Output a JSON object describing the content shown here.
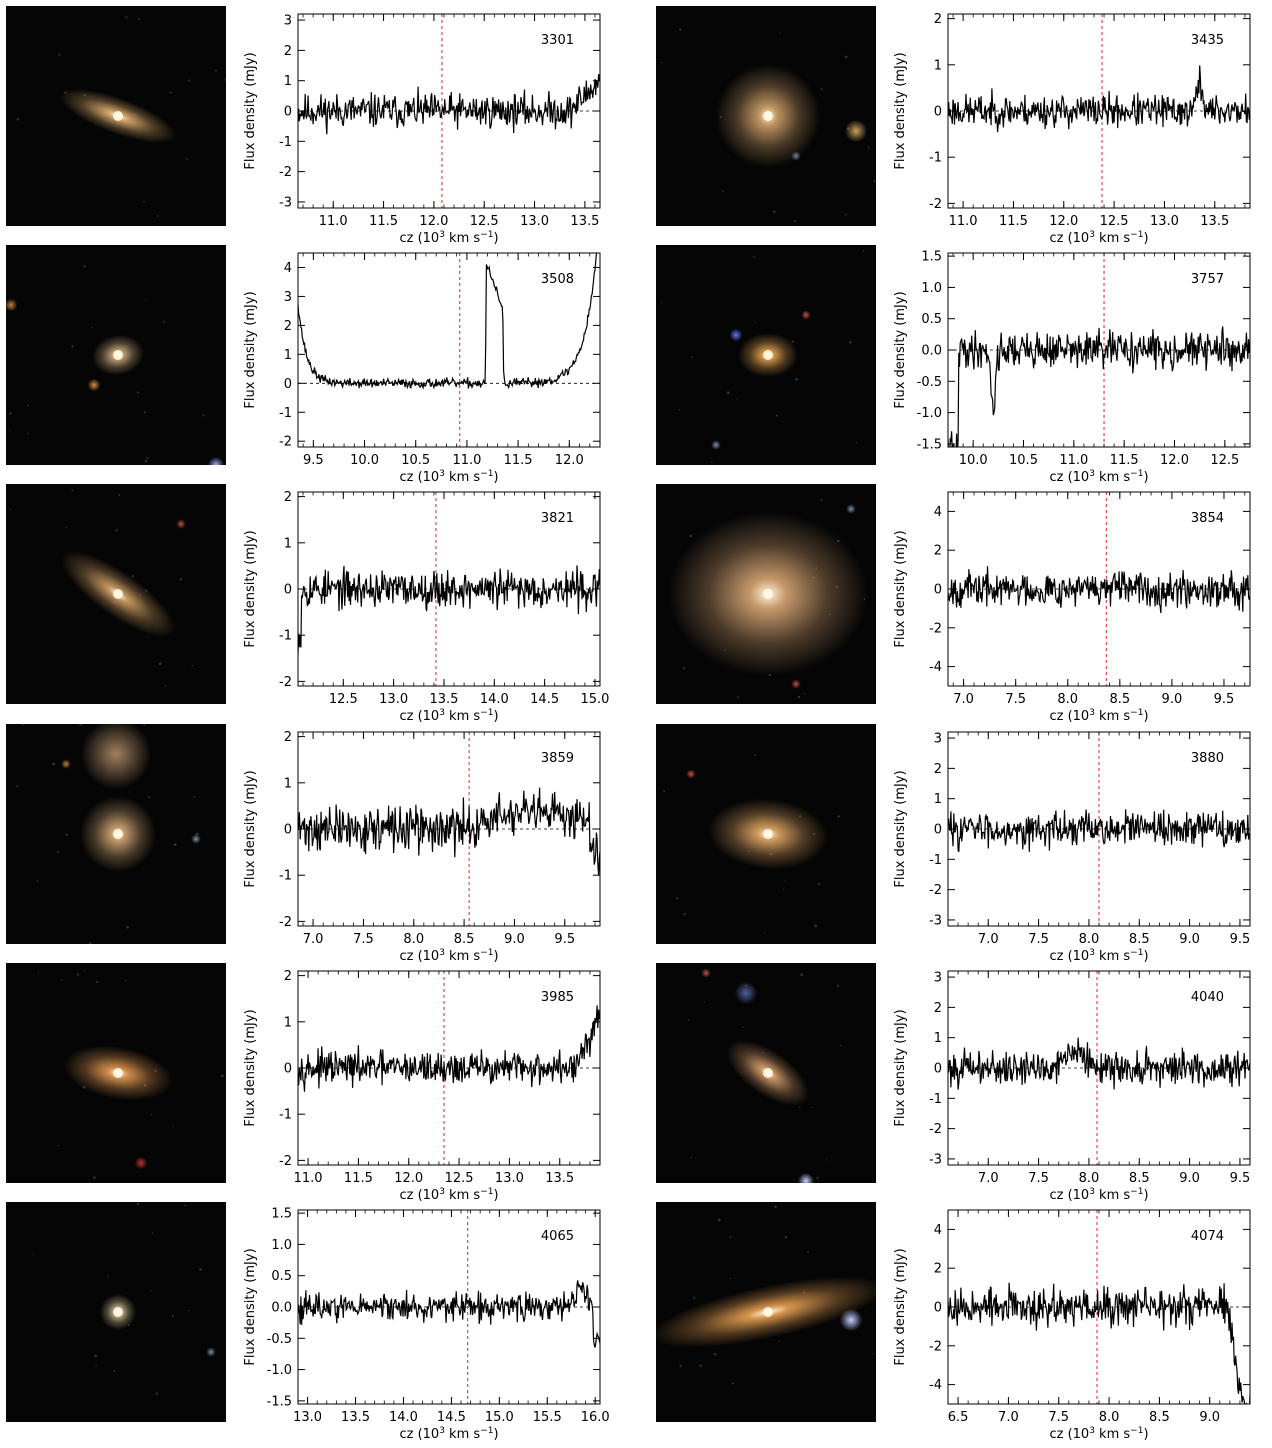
{
  "colors": {
    "spectrum": "#000000",
    "vline": "#e0221e",
    "zero": "#000000",
    "frame": "#000000"
  },
  "axis_labels": {
    "ylabel": "Flux density (mJy)",
    "xlabel_prefix": "cz (10",
    "xlabel_sup": "3",
    "xlabel_mid": " km s",
    "xlabel_sup2": "−1",
    "xlabel_suffix": ")"
  },
  "chart_data": [
    {
      "type": "line",
      "id": "3301",
      "xlim": [
        10.65,
        13.65
      ],
      "ylim": [
        -3.2,
        3.2
      ],
      "xticks": [
        "11.0",
        "11.5",
        "12.0",
        "12.5",
        "13.0",
        "13.5"
      ],
      "xtick_vals": [
        11.0,
        11.5,
        12.0,
        12.5,
        13.0,
        13.5
      ],
      "yticks": [
        "-3",
        "-2",
        "-1",
        "0",
        "1",
        "2",
        "3"
      ],
      "ytick_vals": [
        -3,
        -2,
        -1,
        0,
        1,
        2,
        3
      ],
      "vline": 12.08,
      "noise": 0.35,
      "seed": 11,
      "features": [
        {
          "type": "ramp",
          "x0": 13.35,
          "x1": 13.65,
          "y0": 0,
          "y1": 1.0
        }
      ],
      "galaxy": {
        "type": "spiral",
        "angle": -70,
        "rx": 18,
        "ry": 62,
        "color": "#d6a86a",
        "bg_stars": []
      }
    },
    {
      "type": "line",
      "id": "3435",
      "xlim": [
        10.85,
        13.85
      ],
      "ylim": [
        -2.1,
        2.1
      ],
      "xticks": [
        "11.0",
        "11.5",
        "12.0",
        "12.5",
        "13.0",
        "13.5"
      ],
      "xtick_vals": [
        11.0,
        11.5,
        12.0,
        12.5,
        13.0,
        13.5
      ],
      "yticks": [
        "-2",
        "-1",
        "0",
        "1",
        "2"
      ],
      "ytick_vals": [
        -2,
        -1,
        0,
        1,
        2
      ],
      "vline": 12.38,
      "noise": 0.22,
      "seed": 23,
      "features": [
        {
          "type": "gauss",
          "x": 13.35,
          "w": 0.03,
          "a": 0.6
        }
      ],
      "galaxy": {
        "type": "round",
        "angle": 0,
        "rx": 52,
        "ry": 52,
        "color": "#c79a66",
        "bg_stars": [
          [
            200,
            125,
            7,
            "#c8a060"
          ],
          [
            140,
            150,
            3,
            "#7080a0"
          ]
        ]
      }
    },
    {
      "type": "line",
      "id": "3508",
      "xlim": [
        9.35,
        12.3
      ],
      "ylim": [
        -2.2,
        4.5
      ],
      "xticks": [
        "9.5",
        "10.0",
        "10.5",
        "11.0",
        "11.5",
        "12.0"
      ],
      "xtick_vals": [
        9.5,
        10.0,
        10.5,
        11.0,
        11.5,
        12.0
      ],
      "yticks": [
        "-2",
        "-1",
        "0",
        "1",
        "2",
        "3",
        "4"
      ],
      "ytick_vals": [
        -2,
        -1,
        0,
        1,
        2,
        3,
        4
      ],
      "vline": 10.93,
      "noise": 0.1,
      "seed": 37,
      "features": [
        {
          "type": "expl",
          "x": 9.35,
          "a": 2.8,
          "s": 0.08
        },
        {
          "type": "horn",
          "x0": 11.18,
          "x1": 11.36,
          "a1": 4.2,
          "a2": 2.5
        },
        {
          "type": "expr",
          "x": 12.3,
          "a": 6.0,
          "s": 0.12
        }
      ],
      "galaxy": {
        "type": "small",
        "angle": -10,
        "rx": 26,
        "ry": 20,
        "color": "#d0b080",
        "bg_stars": [
          [
            88,
            140,
            4,
            "#d09040"
          ],
          [
            210,
            220,
            5,
            "#a0b0ff"
          ],
          [
            5,
            60,
            4,
            "#c08040"
          ]
        ]
      }
    },
    {
      "type": "line",
      "id": "3757",
      "xlim": [
        9.75,
        12.75
      ],
      "ylim": [
        -1.55,
        1.55
      ],
      "xticks": [
        "10.0",
        "10.5",
        "11.0",
        "11.5",
        "12.0",
        "12.5"
      ],
      "xtick_vals": [
        10.0,
        10.5,
        11.0,
        11.5,
        12.0,
        12.5
      ],
      "yticks": [
        "-1.5",
        "-1.0",
        "-0.5",
        "0.0",
        "0.5",
        "1.0",
        "1.5"
      ],
      "ytick_vals": [
        -1.5,
        -1.0,
        -0.5,
        0.0,
        0.5,
        1.0,
        1.5
      ],
      "vline": 11.3,
      "noise": 0.18,
      "seed": 41,
      "features": [
        {
          "type": "dip",
          "x0": 9.75,
          "x1": 9.85,
          "a": -1.6
        },
        {
          "type": "gauss",
          "x": 10.2,
          "w": 0.02,
          "a": -1.0
        }
      ],
      "galaxy": {
        "type": "small",
        "angle": 0,
        "rx": 30,
        "ry": 22,
        "color": "#e0a050",
        "bg_stars": [
          [
            80,
            90,
            4,
            "#6070ff"
          ],
          [
            150,
            70,
            3,
            "#c05040"
          ],
          [
            60,
            200,
            3,
            "#8090a0"
          ]
        ]
      }
    },
    {
      "type": "line",
      "id": "3821",
      "xlim": [
        12.05,
        15.05
      ],
      "ylim": [
        -2.1,
        2.1
      ],
      "xticks": [
        "12.5",
        "13.0",
        "13.5",
        "14.0",
        "14.5",
        "15.0"
      ],
      "xtick_vals": [
        12.5,
        13.0,
        13.5,
        14.0,
        14.5,
        15.0
      ],
      "yticks": [
        "-2",
        "-1",
        "0",
        "1",
        "2"
      ],
      "ytick_vals": [
        -2,
        -1,
        0,
        1,
        2
      ],
      "vline": 13.42,
      "noise": 0.25,
      "seed": 53,
      "features": [
        {
          "type": "dip",
          "x0": 12.05,
          "x1": 12.08,
          "a": -1.0
        }
      ],
      "galaxy": {
        "type": "spiral",
        "angle": -55,
        "rx": 22,
        "ry": 68,
        "color": "#c89a60",
        "bg_stars": [
          [
            175,
            40,
            3,
            "#c05040"
          ]
        ]
      }
    },
    {
      "type": "line",
      "id": "3854",
      "xlim": [
        6.85,
        9.75
      ],
      "ylim": [
        -5,
        5
      ],
      "xticks": [
        "7.0",
        "7.5",
        "8.0",
        "8.5",
        "9.0",
        "9.5"
      ],
      "xtick_vals": [
        7.0,
        7.5,
        8.0,
        8.5,
        9.0,
        9.5
      ],
      "yticks": [
        "-4",
        "-2",
        "0",
        "2",
        "4"
      ],
      "ytick_vals": [
        -4,
        -2,
        0,
        2,
        4
      ],
      "vline": 8.37,
      "noise": 0.55,
      "seed": 67,
      "features": [],
      "galaxy": {
        "type": "big",
        "angle": 0,
        "rx": 100,
        "ry": 82,
        "color": "#d0a070",
        "bg_stars": [
          [
            195,
            25,
            3,
            "#8090a0"
          ],
          [
            140,
            200,
            3,
            "#c05040"
          ]
        ]
      }
    },
    {
      "type": "line",
      "id": "3859",
      "xlim": [
        6.85,
        9.85
      ],
      "ylim": [
        -2.1,
        2.1
      ],
      "xticks": [
        "7.0",
        "7.5",
        "8.0",
        "8.5",
        "9.0",
        "9.5"
      ],
      "xtick_vals": [
        7.0,
        7.5,
        8.0,
        8.5,
        9.0,
        9.5
      ],
      "yticks": [
        "-2",
        "-1",
        "0",
        "1",
        "2"
      ],
      "ytick_vals": [
        -2,
        -1,
        0,
        1,
        2
      ],
      "vline": 8.55,
      "noise": 0.3,
      "seed": 71,
      "features": [
        {
          "type": "ramp",
          "x0": 8.5,
          "x1": 8.9,
          "y0": 0,
          "y1": 0.3
        },
        {
          "type": "dip",
          "x0": 9.75,
          "x1": 9.85,
          "a": -0.7
        }
      ],
      "galaxy": {
        "type": "pair",
        "angle": 0,
        "rx": 38,
        "ry": 38,
        "color": "#c8a070",
        "bg_stars": [
          [
            110,
            30,
            22,
            "#a08060"
          ],
          [
            60,
            40,
            3,
            "#c08040"
          ],
          [
            190,
            115,
            3,
            "#8090a0"
          ]
        ]
      }
    },
    {
      "type": "line",
      "id": "3880",
      "xlim": [
        6.6,
        9.6
      ],
      "ylim": [
        -3.2,
        3.2
      ],
      "xticks": [
        "7.0",
        "7.5",
        "8.0",
        "8.5",
        "9.0",
        "9.5"
      ],
      "xtick_vals": [
        7.0,
        7.5,
        8.0,
        8.5,
        9.0,
        9.5
      ],
      "yticks": [
        "-3",
        "-2",
        "-1",
        "0",
        "1",
        "2",
        "3"
      ],
      "ytick_vals": [
        -3,
        -2,
        -1,
        0,
        1,
        2,
        3
      ],
      "vline": 8.1,
      "noise": 0.35,
      "seed": 83,
      "features": [],
      "galaxy": {
        "type": "elliptical",
        "angle": -85,
        "rx": 35,
        "ry": 60,
        "color": "#d8a060",
        "bg_stars": [
          [
            35,
            50,
            3,
            "#c05040"
          ]
        ]
      }
    },
    {
      "type": "line",
      "id": "3985",
      "xlim": [
        10.9,
        13.9
      ],
      "ylim": [
        -2.1,
        2.1
      ],
      "xticks": [
        "11.0",
        "11.5",
        "12.0",
        "12.5",
        "13.0",
        "13.5"
      ],
      "xtick_vals": [
        11.0,
        11.5,
        12.0,
        12.5,
        13.0,
        13.5
      ],
      "yticks": [
        "-2",
        "-1",
        "0",
        "1",
        "2"
      ],
      "ytick_vals": [
        -2,
        -1,
        0,
        1,
        2
      ],
      "vline": 12.35,
      "noise": 0.22,
      "seed": 97,
      "features": [
        {
          "type": "ramp",
          "x0": 13.65,
          "x1": 13.9,
          "y0": 0,
          "y1": 1.1
        }
      ],
      "galaxy": {
        "type": "elliptical",
        "angle": -80,
        "rx": 26,
        "ry": 55,
        "color": "#dc9450",
        "bg_stars": [
          [
            135,
            200,
            4,
            "#c03030"
          ]
        ]
      }
    },
    {
      "type": "line",
      "id": "4040",
      "xlim": [
        6.6,
        9.6
      ],
      "ylim": [
        -3.2,
        3.2
      ],
      "xticks": [
        "7.0",
        "7.5",
        "8.0",
        "8.5",
        "9.0",
        "9.5"
      ],
      "xtick_vals": [
        7.0,
        7.5,
        8.0,
        8.5,
        9.0,
        9.5
      ],
      "yticks": [
        "-3",
        "-2",
        "-1",
        "0",
        "1",
        "2",
        "3"
      ],
      "ytick_vals": [
        -3,
        -2,
        -1,
        0,
        1,
        2,
        3
      ],
      "vline": 8.08,
      "noise": 0.35,
      "seed": 101,
      "features": [
        {
          "type": "gauss",
          "x": 7.85,
          "w": 0.08,
          "a": 0.7
        }
      ],
      "galaxy": {
        "type": "spiral",
        "angle": -55,
        "rx": 22,
        "ry": 48,
        "color": "#d09868",
        "bg_stars": [
          [
            90,
            30,
            7,
            "#5060a0"
          ],
          [
            150,
            218,
            5,
            "#c0d0ff"
          ],
          [
            50,
            10,
            3,
            "#c05040"
          ]
        ]
      }
    },
    {
      "type": "line",
      "id": "4065",
      "xlim": [
        12.9,
        16.05
      ],
      "ylim": [
        -1.55,
        1.55
      ],
      "xticks": [
        "13.0",
        "13.5",
        "14.0",
        "14.5",
        "15.0",
        "15.5",
        "16.0"
      ],
      "xtick_vals": [
        13.0,
        13.5,
        14.0,
        14.5,
        15.0,
        15.5,
        16.0
      ],
      "yticks": [
        "-1.5",
        "-1.0",
        "-0.5",
        "0.0",
        "0.5",
        "1.0",
        "1.5"
      ],
      "ytick_vals": [
        -1.5,
        -1.0,
        -0.5,
        0.0,
        0.5,
        1.0,
        1.5
      ],
      "vline": 14.67,
      "noise": 0.14,
      "seed": 113,
      "features": [
        {
          "type": "gauss",
          "x": 15.85,
          "w": 0.05,
          "a": 0.35
        },
        {
          "type": "dip",
          "x0": 15.98,
          "x1": 16.05,
          "a": -0.6
        }
      ],
      "galaxy": {
        "type": "small",
        "angle": 0,
        "rx": 18,
        "ry": 18,
        "color": "#d0c090",
        "bg_stars": [
          [
            205,
            150,
            3,
            "#8090a0"
          ]
        ]
      }
    },
    {
      "type": "line",
      "id": "4074",
      "xlim": [
        6.4,
        9.4
      ],
      "ylim": [
        -5,
        5
      ],
      "xticks": [
        "6.5",
        "7.0",
        "7.5",
        "8.0",
        "8.5",
        "9.0"
      ],
      "xtick_vals": [
        6.5,
        7.0,
        7.5,
        8.0,
        8.5,
        9.0
      ],
      "yticks": [
        "-4",
        "-2",
        "0",
        "2",
        "4"
      ],
      "ytick_vals": [
        -4,
        -2,
        0,
        2,
        4
      ],
      "vline": 7.88,
      "noise": 0.6,
      "seed": 127,
      "features": [
        {
          "type": "ramp",
          "x0": 9.18,
          "x1": 9.32,
          "y0": 0,
          "y1": -5.0
        }
      ],
      "galaxy": {
        "type": "edgeon",
        "angle": -12,
        "rx": 120,
        "ry": 26,
        "color": "#e09a50",
        "bg_stars": [
          [
            195,
            118,
            7,
            "#c0d0ff"
          ]
        ]
      }
    }
  ]
}
